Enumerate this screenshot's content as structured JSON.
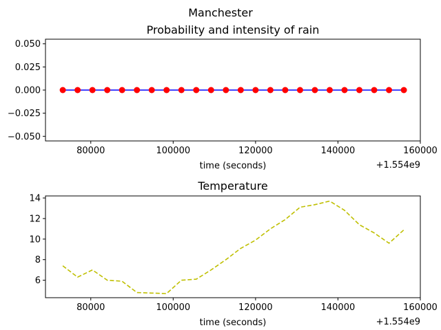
{
  "figure": {
    "suptitle": "Manchester"
  },
  "chart_data": [
    {
      "type": "line",
      "title": "Probability and intensity of rain",
      "xlabel": "time (seconds)",
      "offset_text": "+1.554e9",
      "xlim": [
        69000,
        160000
      ],
      "ylim": [
        -0.055,
        0.055
      ],
      "xticks": [
        80000,
        100000,
        120000,
        140000,
        160000
      ],
      "xtick_labels": [
        "80000",
        "100000",
        "120000",
        "140000",
        "160000"
      ],
      "yticks": [
        -0.05,
        -0.025,
        0,
        0.025,
        0.05
      ],
      "ytick_labels": [
        "−0.050",
        "−0.025",
        "0.000",
        "0.025",
        "0.050"
      ],
      "series": [
        {
          "style": "line",
          "color": "#0000ff",
          "x": [
            73200,
            76800,
            80400,
            84000,
            87600,
            91200,
            94800,
            98400,
            102000,
            105600,
            109200,
            112800,
            116400,
            120000,
            123600,
            127200,
            130800,
            134400,
            138000,
            141600,
            145200,
            148800,
            152400,
            156000
          ],
          "y": [
            0,
            0,
            0,
            0,
            0,
            0,
            0,
            0,
            0,
            0,
            0,
            0,
            0,
            0,
            0,
            0,
            0,
            0,
            0,
            0,
            0,
            0,
            0,
            0
          ]
        },
        {
          "style": "marker",
          "color": "#ff0000",
          "x": [
            73200,
            76800,
            80400,
            84000,
            87600,
            91200,
            94800,
            98400,
            102000,
            105600,
            109200,
            112800,
            116400,
            120000,
            123600,
            127200,
            130800,
            134400,
            138000,
            141600,
            145200,
            148800,
            152400,
            156000
          ],
          "y": [
            0,
            0,
            0,
            0,
            0,
            0,
            0,
            0,
            0,
            0,
            0,
            0,
            0,
            0,
            0,
            0,
            0,
            0,
            0,
            0,
            0,
            0,
            0,
            0
          ]
        }
      ]
    },
    {
      "type": "line",
      "title": "Temperature",
      "xlabel": "time (seconds)",
      "offset_text": "+1.554e9",
      "xlim": [
        69000,
        160000
      ],
      "ylim": [
        4.3,
        14.2
      ],
      "xticks": [
        80000,
        100000,
        120000,
        140000,
        160000
      ],
      "xtick_labels": [
        "80000",
        "100000",
        "120000",
        "140000",
        "160000"
      ],
      "yticks": [
        6,
        8,
        10,
        12,
        14
      ],
      "ytick_labels": [
        "6",
        "8",
        "10",
        "12",
        "14"
      ],
      "series": [
        {
          "style": "dashed",
          "color": "#bfbf00",
          "x": [
            73200,
            76800,
            80400,
            84000,
            87600,
            91200,
            94800,
            98400,
            102000,
            105600,
            109200,
            112800,
            116400,
            120000,
            123600,
            127200,
            130800,
            134400,
            138000,
            141600,
            145200,
            148800,
            152400,
            156000
          ],
          "y": [
            7.4,
            6.3,
            7.0,
            6.0,
            5.9,
            4.8,
            4.75,
            4.7,
            6.0,
            6.1,
            7.0,
            8.0,
            9.1,
            9.9,
            11.0,
            11.9,
            13.1,
            13.35,
            13.7,
            12.8,
            11.4,
            10.6,
            9.6,
            10.9
          ]
        }
      ]
    }
  ]
}
